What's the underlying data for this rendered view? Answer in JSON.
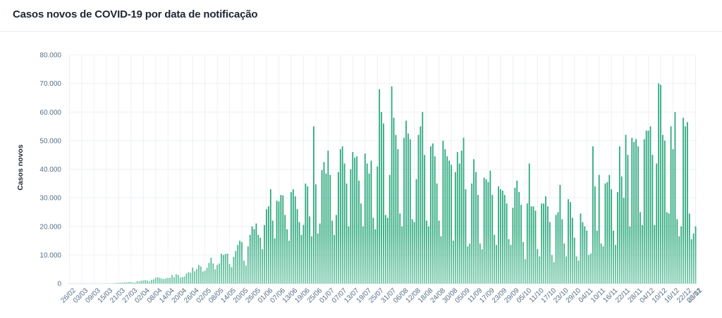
{
  "header": {
    "title": "Casos novos de COVID-19 por data de notificação"
  },
  "colors": {
    "bar": "#2eaa7e",
    "grid": "#edf0f3",
    "axis_text": "#55708a",
    "title": "#1f2733"
  },
  "chart_data": {
    "type": "bar",
    "title": "Casos novos de COVID-19 por data de notificação",
    "xlabel": "",
    "ylabel": "Casos novos",
    "ylim": [
      0,
      80000
    ],
    "yticks": [
      0,
      10000,
      20000,
      30000,
      40000,
      50000,
      60000,
      70000,
      80000
    ],
    "ytick_labels": [
      "0",
      "10.000",
      "20.000",
      "30.000",
      "40.000",
      "50.000",
      "60.000",
      "70.000",
      "80.000"
    ],
    "xtick_labels": [
      "26/02",
      "03/03",
      "09/03",
      "15/03",
      "21/03",
      "27/03",
      "02/04",
      "08/04",
      "14/04",
      "20/04",
      "26/04",
      "02/05",
      "08/05",
      "14/05",
      "20/05",
      "26/05",
      "01/06",
      "07/06",
      "13/06",
      "19/06",
      "25/06",
      "01/07",
      "07/07",
      "13/07",
      "19/07",
      "25/07",
      "31/07",
      "06/08",
      "12/08",
      "18/08",
      "24/08",
      "30/08",
      "05/09",
      "11/09",
      "17/09",
      "23/09",
      "29/09",
      "05/10",
      "11/10",
      "17/10",
      "23/10",
      "29/10",
      "04/11",
      "10/11",
      "16/11",
      "22/11",
      "28/11",
      "04/12",
      "10/12",
      "16/12",
      "22/12",
      "28/12",
      "03/01"
    ],
    "grid": true,
    "legend": "none",
    "values": [
      0,
      0,
      0,
      0,
      0,
      0,
      0,
      0,
      0,
      0,
      0,
      0,
      0,
      0,
      0,
      0,
      0,
      0,
      20,
      0,
      50,
      80,
      120,
      200,
      250,
      300,
      320,
      400,
      400,
      500,
      500,
      350,
      300,
      800,
      700,
      1000,
      1100,
      1200,
      1000,
      700,
      1300,
      1500,
      2000,
      2200,
      2000,
      1700,
      1600,
      1800,
      2000,
      2000,
      3000,
      2200,
      3200,
      3000,
      2100,
      2200,
      2500,
      3500,
      4000,
      3800,
      5600,
      4300,
      5000,
      6500,
      6000,
      4200,
      4500,
      5500,
      7200,
      9000,
      7000,
      5000,
      6500,
      7000,
      10400,
      10000,
      10300,
      10500,
      6800,
      5700,
      9300,
      11400,
      13500,
      15000,
      14500,
      8000,
      6300,
      13000,
      17000,
      20000,
      19000,
      21000,
      17000,
      16000,
      12000,
      20500,
      26000,
      27000,
      33000,
      22000,
      15800,
      29000,
      28700,
      31000,
      30800,
      24000,
      19000,
      15000,
      32000,
      33000,
      30500,
      26000,
      21500,
      17000,
      20500,
      35000,
      34000,
      23500,
      16500,
      55000,
      34700,
      17500,
      21000,
      39700,
      42500,
      38500,
      46500,
      38000,
      22000,
      17000,
      24000,
      39000,
      47000,
      48000,
      42000,
      35000,
      20000,
      40000,
      46000,
      44000,
      44500,
      36000,
      28000,
      20000,
      45500,
      42000,
      38500,
      43000,
      23000,
      19000,
      41000,
      68000,
      60000,
      56000,
      24000,
      23000,
      38000,
      69000,
      58000,
      52000,
      47000,
      24500,
      20000,
      51000,
      57000,
      52500,
      50500,
      22500,
      21500,
      36500,
      52000,
      55000,
      60000,
      45000,
      22000,
      20000,
      48000,
      49000,
      44500,
      35000,
      22000,
      16500,
      50000,
      47000,
      44500,
      43000,
      41500,
      15000,
      39000,
      46000,
      42000,
      46500,
      51000,
      33000,
      13000,
      14000,
      35000,
      43500,
      39000,
      31000,
      14000,
      12000,
      37000,
      36500,
      35500,
      39500,
      31000,
      17000,
      13500,
      34000,
      33000,
      32500,
      31000,
      28000,
      15500,
      13500,
      26500,
      33500,
      36000,
      32000,
      27500,
      14500,
      8500,
      28000,
      42000,
      27000,
      27000,
      25500,
      12000,
      9500,
      28000,
      28000,
      30500,
      27000,
      21500,
      10000,
      7500,
      24000,
      25000,
      34500,
      22500,
      14000,
      9500,
      29500,
      28500,
      23000,
      16000,
      9500,
      8000,
      24500,
      21500,
      20000,
      18500,
      10000,
      10500,
      48000,
      34000,
      18500,
      38000,
      14000,
      13000,
      35000,
      35500,
      38000,
      33000,
      18500,
      13500,
      32000,
      48000,
      37500,
      30000,
      52000,
      45000,
      20000,
      51000,
      49500,
      50500,
      48000,
      25000,
      20500,
      50500,
      53500,
      53500,
      55000,
      45000,
      20500,
      42000,
      70000,
      69500,
      52000,
      50000,
      25000,
      24500,
      55000,
      47000,
      60000,
      22500,
      16500,
      20000,
      58000,
      55000,
      56500,
      24500,
      15500,
      17500,
      20000
    ]
  }
}
